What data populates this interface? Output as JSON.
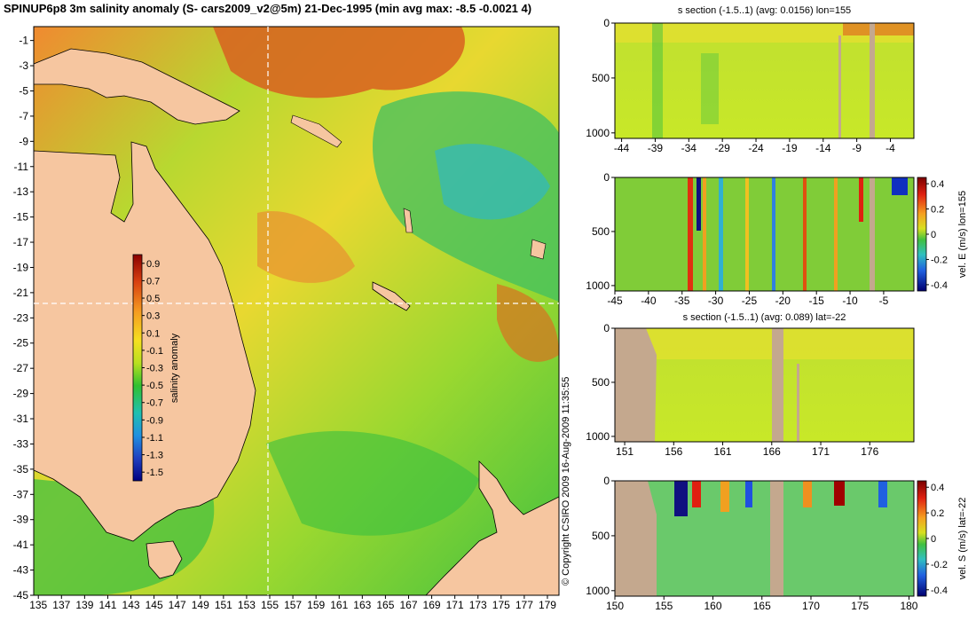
{
  "title": "SPINUP6p8 3m salinity anomaly (S- cars2009_v2@5m) 21-Dec-1995 (min avg max: -8.5 -0.0021 4)",
  "copyright": "© Copyright CSIRO 2009   16-Aug-2009 11:35:55",
  "colors": {
    "land": "#f6c6a0",
    "section_land": "#c4a88e"
  },
  "chart_data": [
    {
      "type": "heatmap",
      "name": "map",
      "x_ticks": [
        "135",
        "137",
        "139",
        "141",
        "143",
        "145",
        "147",
        "149",
        "151",
        "153",
        "155",
        "157",
        "159",
        "161",
        "163",
        "165",
        "167",
        "169",
        "171",
        "173",
        "175",
        "177",
        "179"
      ],
      "y_ticks": [
        "-1",
        "-3",
        "-5",
        "-7",
        "-9",
        "-11",
        "-13",
        "-15",
        "-17",
        "-19",
        "-21",
        "-23",
        "-25",
        "-27",
        "-29",
        "-31",
        "-33",
        "-35",
        "-37",
        "-39",
        "-41",
        "-43",
        "-45"
      ],
      "xlim": [
        134.6,
        180.0
      ],
      "ylim": [
        -45.0,
        0.1
      ],
      "crosshair": {
        "lon": 155,
        "lat": -22
      },
      "colorbar": {
        "label": "salinity anomaly",
        "ticks": [
          "0.9",
          "0.7",
          "0.5",
          "0.3",
          "0.1",
          "-0.1",
          "-0.3",
          "-0.5",
          "-0.7",
          "-0.9",
          "-1.1",
          "-1.3",
          "-1.5"
        ],
        "range": [
          -1.6,
          1.0
        ]
      }
    },
    {
      "type": "heatmap",
      "name": "s-section-lon155",
      "title": "s section (-1.5..1) (avg: 0.0156) lon=155",
      "x_ticks": [
        "-44",
        "-39",
        "-34",
        "-29",
        "-24",
        "-19",
        "-14",
        "-9",
        "-4"
      ],
      "xlim": [
        -45.0,
        -0.5
      ],
      "y_ticks": [
        "0",
        "500",
        "1000"
      ],
      "ylim": [
        1050,
        0
      ]
    },
    {
      "type": "heatmap",
      "name": "vel-e-lon155",
      "x_ticks": [
        "-45",
        "-40",
        "-35",
        "-30",
        "-25",
        "-20",
        "-15",
        "-10",
        "-5"
      ],
      "xlim": [
        -45.0,
        -0.5
      ],
      "y_ticks": [
        "0",
        "500",
        "1000"
      ],
      "ylim": [
        1050,
        0
      ],
      "colorbar": {
        "label": "vel. E (m/s) lon=155",
        "ticks": [
          "0.4",
          "0.2",
          "0",
          "-0.2",
          "-0.4"
        ],
        "range": [
          -0.45,
          0.45
        ]
      }
    },
    {
      "type": "heatmap",
      "name": "s-section-lat-22",
      "title": "s section (-1.5..1) (avg: 0.089) lat=-22",
      "x_ticks": [
        "151",
        "156",
        "161",
        "166",
        "171",
        "176"
      ],
      "xlim": [
        150.0,
        180.5
      ],
      "y_ticks": [
        "0",
        "500",
        "1000"
      ],
      "ylim": [
        1050,
        0
      ]
    },
    {
      "type": "heatmap",
      "name": "vel-s-lat-22",
      "x_ticks": [
        "150",
        "155",
        "160",
        "165",
        "170",
        "175",
        "180"
      ],
      "xlim": [
        150.0,
        180.5
      ],
      "y_ticks": [
        "0",
        "500",
        "1000"
      ],
      "ylim": [
        1050,
        0
      ],
      "colorbar": {
        "label": "vel. S (m/s) lat=-22",
        "ticks": [
          "0.4",
          "0.2",
          "0",
          "-0.2",
          "-0.4"
        ],
        "range": [
          -0.45,
          0.45
        ]
      }
    }
  ]
}
